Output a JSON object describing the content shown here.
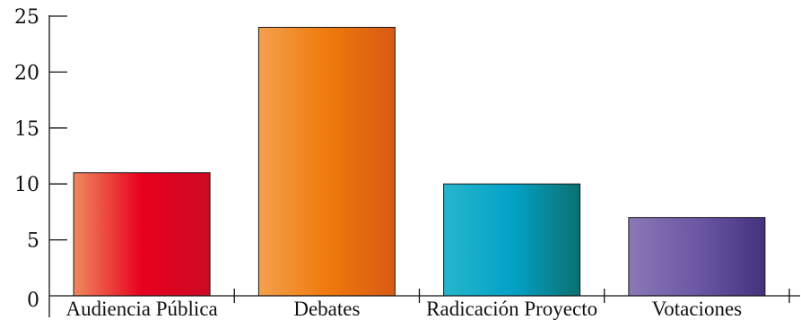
{
  "chart_data": {
    "type": "bar",
    "title": "",
    "xlabel": "",
    "ylabel": "",
    "categories": [
      "Audiencia Pública",
      "Debates",
      "Radicación Proyecto",
      "Votaciones"
    ],
    "values": [
      11,
      24,
      10,
      7
    ],
    "ylim": [
      0,
      25
    ],
    "yticks": [
      0,
      5,
      10,
      15,
      20,
      25
    ],
    "grid": false,
    "legend": "none",
    "bar_gradients": [
      [
        "#f08a5e",
        "#e8001e",
        "#cc0a24"
      ],
      [
        "#f4a04e",
        "#ef7a0d",
        "#d85a14"
      ],
      [
        "#26b6cc",
        "#03a2c8",
        "#0b7070"
      ],
      [
        "#8a78b6",
        "#6c58a4",
        "#44327e"
      ]
    ]
  }
}
